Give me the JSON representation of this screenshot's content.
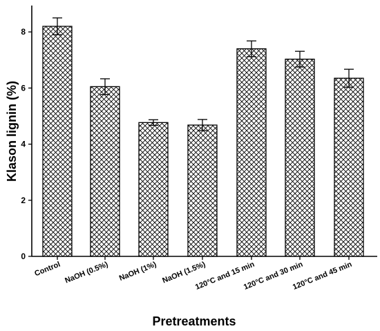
{
  "chart_data": {
    "type": "bar",
    "title": "",
    "xlabel": "Pretreatments",
    "ylabel": "Klason lignin (%)",
    "categories": [
      "Control",
      "NaOH (0.5%)",
      "NaOH (1%)",
      "NaOH (1.5%)",
      "120°C and 15 min",
      "120°C and 30 min",
      "120°C and 45 min"
    ],
    "values": [
      8.2,
      6.05,
      4.77,
      4.68,
      7.4,
      7.03,
      6.35
    ],
    "errors": [
      0.3,
      0.28,
      0.1,
      0.2,
      0.28,
      0.28,
      0.32
    ],
    "ylim": [
      0,
      9
    ],
    "yticks": [
      0,
      2,
      4,
      6,
      8
    ],
    "yticks_labels": [
      "0",
      "2",
      "4",
      "6",
      "8"
    ],
    "bar_fill": "crosshatch",
    "bar_color": "#000000",
    "background": "#ffffff",
    "grid": false,
    "legend": false
  }
}
